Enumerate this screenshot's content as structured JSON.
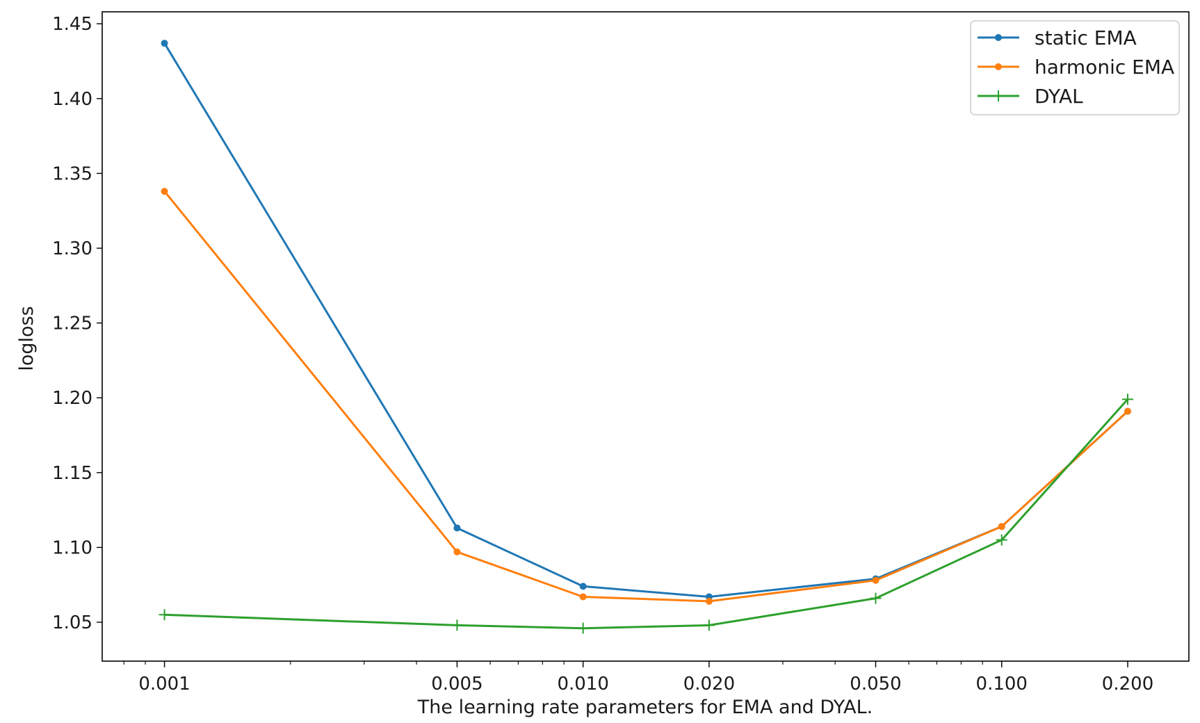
{
  "chart_data": {
    "type": "line",
    "title": "",
    "xlabel": "The learning rate parameters for EMA and DYAL.",
    "ylabel": "logloss",
    "x_scale": "log",
    "x": [
      0.001,
      0.005,
      0.01,
      0.02,
      0.05,
      0.1,
      0.2
    ],
    "x_tick_labels": [
      "0.001",
      "0.005",
      "0.010",
      "0.020",
      "0.050",
      "0.100",
      "0.200"
    ],
    "xlim": [
      0.00071,
      0.28
    ],
    "ylim": [
      1.024,
      1.458
    ],
    "y_ticks": [
      1.05,
      1.1,
      1.15,
      1.2,
      1.25,
      1.3,
      1.35,
      1.4,
      1.45
    ],
    "y_tick_labels": [
      "1.05",
      "1.10",
      "1.15",
      "1.20",
      "1.25",
      "1.30",
      "1.35",
      "1.40",
      "1.45"
    ],
    "grid": false,
    "legend_position": "upper right",
    "series": [
      {
        "name": "static EMA",
        "color": "#1f77b4",
        "marker": "dot",
        "values": [
          1.437,
          1.113,
          1.074,
          1.067,
          1.079,
          1.114,
          1.191
        ]
      },
      {
        "name": "harmonic EMA",
        "color": "#ff7f0e",
        "marker": "dot",
        "values": [
          1.338,
          1.097,
          1.067,
          1.064,
          1.078,
          1.114,
          1.191
        ]
      },
      {
        "name": "DYAL",
        "color": "#2ca02c",
        "marker": "plus",
        "values": [
          1.055,
          1.048,
          1.046,
          1.048,
          1.066,
          1.105,
          1.199
        ]
      }
    ]
  }
}
